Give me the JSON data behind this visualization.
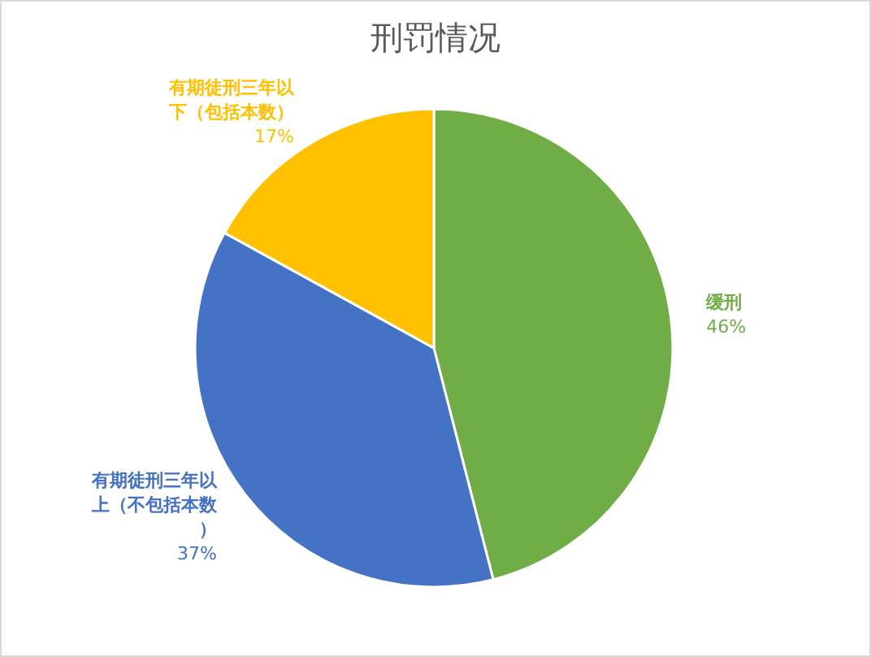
{
  "chart_data": {
    "type": "pie",
    "title": "刑罚情况",
    "categories": [
      "缓刑",
      "有期徒刑三年以上（不包括本数）",
      "有期徒刑三年以下（包括本数）"
    ],
    "values": [
      46,
      37,
      17
    ],
    "colors": [
      "#70ad47",
      "#4472c4",
      "#ffc000"
    ],
    "value_labels": [
      "46%",
      "37%",
      "17%"
    ],
    "legend": false
  }
}
